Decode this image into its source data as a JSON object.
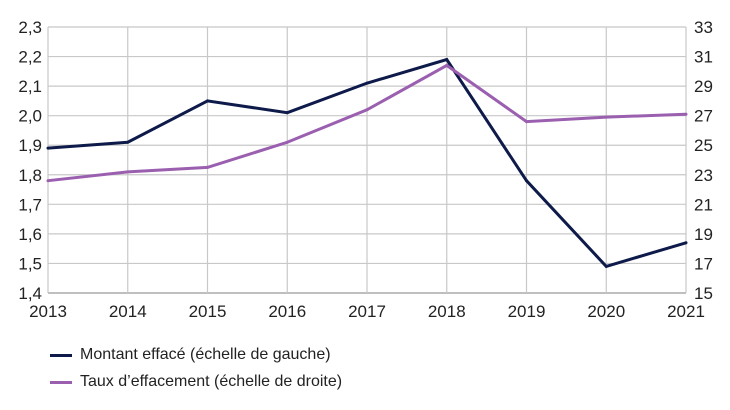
{
  "chart_data": {
    "type": "line",
    "x": [
      "2013",
      "2014",
      "2015",
      "2016",
      "2017",
      "2018",
      "2019",
      "2020",
      "2021"
    ],
    "series": [
      {
        "name": "Montant effacé (échelle de gauche)",
        "axis": "left",
        "color": "#0d1a4a",
        "values": [
          1.89,
          1.91,
          2.05,
          2.01,
          2.11,
          2.19,
          1.78,
          1.49,
          1.57
        ]
      },
      {
        "name": "Taux d’effacement (échelle de droite)",
        "axis": "right",
        "color": "#9b5fb0",
        "values": [
          22.6,
          23.2,
          23.5,
          25.2,
          27.4,
          30.4,
          26.6,
          26.9,
          27.1
        ]
      }
    ],
    "y_left": {
      "lim": [
        1.4,
        2.3
      ],
      "ticks": [
        "1,4",
        "1,5",
        "1,6",
        "1,7",
        "1,8",
        "1,9",
        "2,0",
        "2,1",
        "2,2",
        "2,3"
      ]
    },
    "y_right": {
      "lim": [
        15,
        33
      ],
      "ticks": [
        "15",
        "17",
        "19",
        "21",
        "23",
        "25",
        "27",
        "29",
        "31",
        "33"
      ]
    },
    "grid": true,
    "legend": "bottom-left",
    "grid_color": "#c8c8c8"
  }
}
